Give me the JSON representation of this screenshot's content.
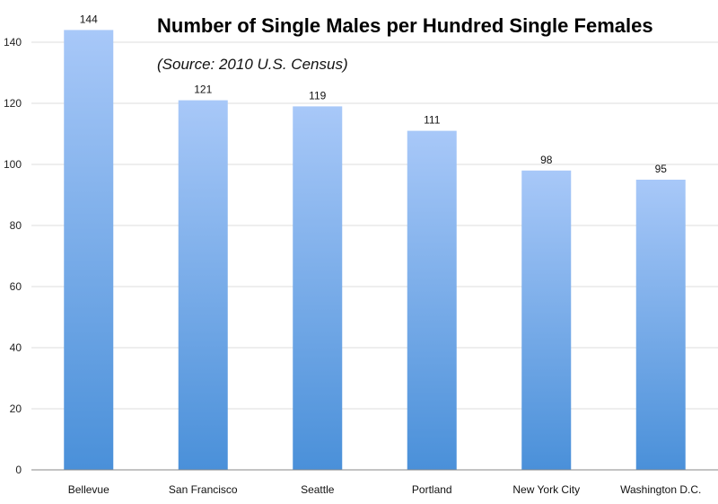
{
  "chart_data": {
    "type": "bar",
    "title": "Number of Single Males per Hundred Single Females",
    "subtitle": "(Source: 2010 U.S. Census)",
    "xlabel": "",
    "ylabel": "",
    "categories": [
      "Bellevue",
      "San Francisco",
      "Seattle",
      "Portland",
      "New York City",
      "Washington D.C."
    ],
    "values": [
      144,
      121,
      119,
      111,
      98,
      95
    ],
    "data_labels": [
      "144",
      "121",
      "119",
      "111",
      "98",
      "95"
    ],
    "ylim": [
      0,
      160
    ],
    "yticks": [
      0,
      20,
      40,
      60,
      80,
      100,
      120,
      140
    ],
    "grid": true,
    "legend": "none",
    "colors": {
      "bar_top": "#a8c8f8",
      "bar_bottom": "#4a90d9",
      "grid": "#dcdcdc",
      "axis": "#888888"
    }
  }
}
